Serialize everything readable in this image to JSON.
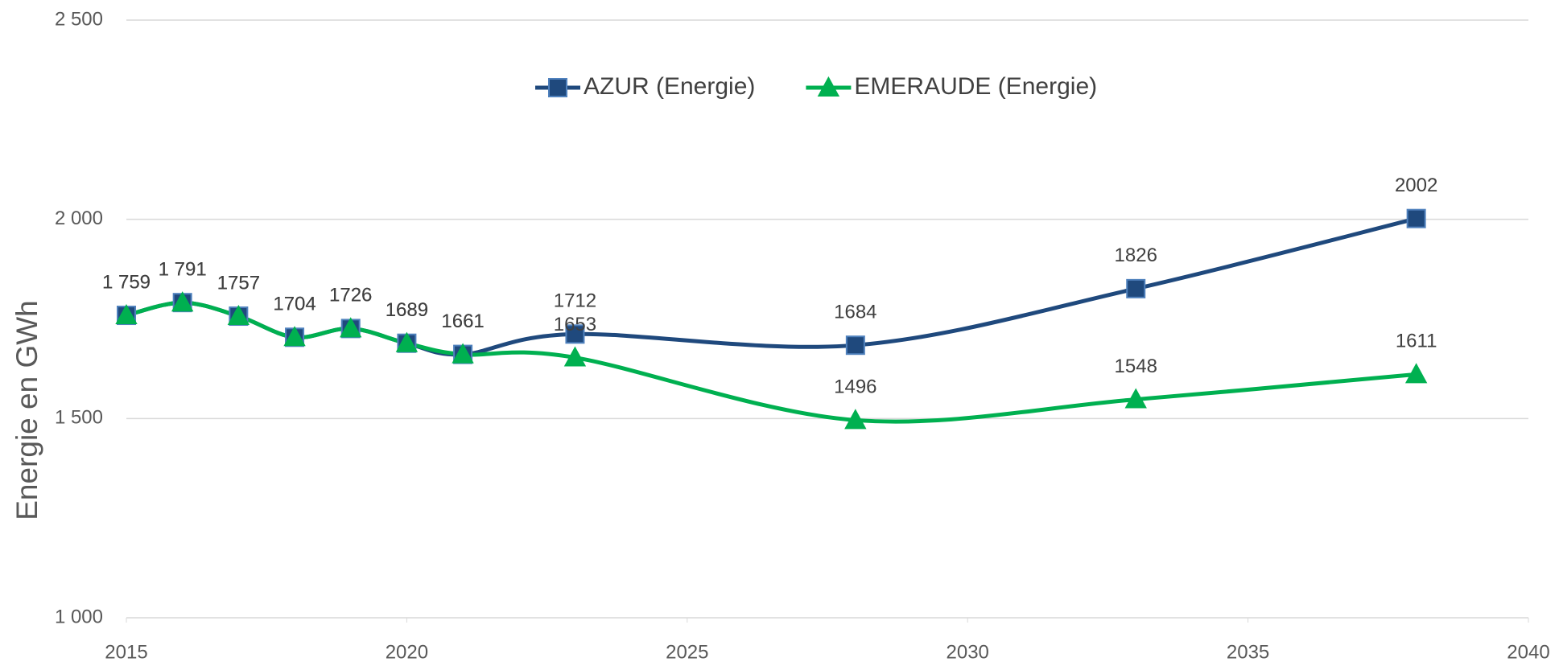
{
  "chart_data": {
    "type": "line",
    "y_label": "Energie en GWh",
    "x": [
      2015,
      2016,
      2017,
      2018,
      2019,
      2020,
      2021,
      2023,
      2028,
      2033,
      2038
    ],
    "series": [
      {
        "name": "AZUR (Energie)",
        "color": "#1f497d",
        "marker": "square",
        "values": [
          1759,
          1791,
          1757,
          1704,
          1726,
          1689,
          1661,
          1712,
          1684,
          1826,
          2002
        ],
        "value_labels": [
          "1 759",
          "1 791",
          "1757",
          "1704",
          "1726",
          "1689",
          "1661",
          "1712",
          "1684",
          "1826",
          "2002"
        ]
      },
      {
        "name": "EMERAUDE (Energie)",
        "color": "#00b050",
        "marker": "triangle",
        "values": [
          1759,
          1791,
          1757,
          1704,
          1726,
          1689,
          1661,
          1653,
          1496,
          1548,
          1611
        ],
        "value_labels": [
          "1 759",
          "1 791",
          "1757",
          "1704",
          "1726",
          "1689",
          "1661",
          "1653",
          "1496",
          "1548",
          "1611"
        ]
      }
    ],
    "xlim": [
      2015,
      2040
    ],
    "xticks": [
      2015,
      2020,
      2025,
      2030,
      2035,
      2040
    ],
    "ylim": [
      1000,
      2500
    ],
    "yticks": [
      {
        "value": 1000,
        "label": "1 000"
      },
      {
        "value": 1500,
        "label": "1 500"
      },
      {
        "value": 2000,
        "label": "2 000"
      },
      {
        "value": 2500,
        "label": "2 500"
      }
    ],
    "grid": true,
    "legend": "top",
    "smooth": true
  }
}
